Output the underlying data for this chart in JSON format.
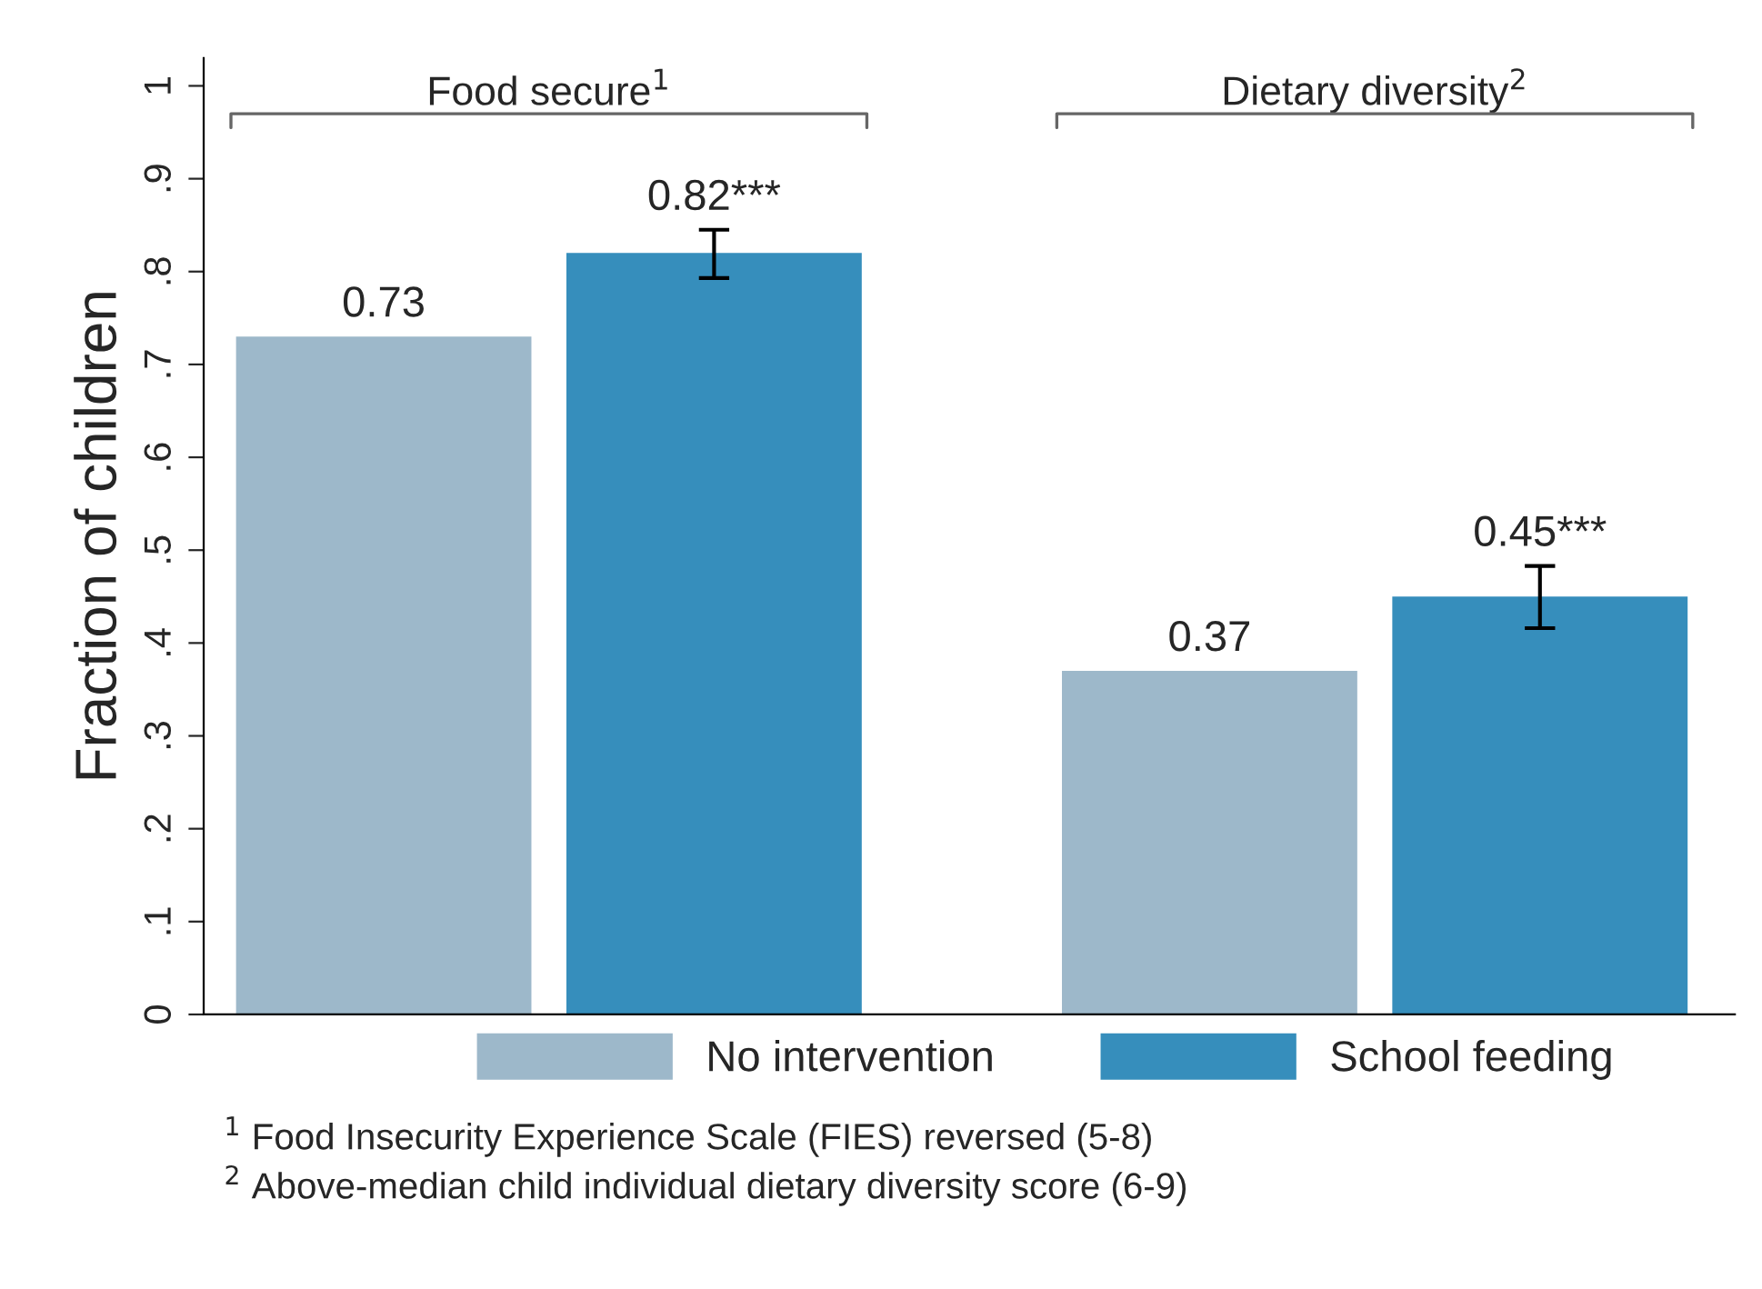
{
  "chart_data": {
    "type": "bar",
    "ylabel": "Fraction of children",
    "categories": [
      "Food secure$^{1}$",
      "Dietary diversity$^{2}$"
    ],
    "series": [
      {
        "name": "No intervention",
        "color": "#9db8ca",
        "values": [
          0.73,
          0.37
        ],
        "value_labels": [
          "0.73",
          "0.37"
        ]
      },
      {
        "name": "School feeding",
        "color": "#368ebc",
        "values": [
          0.82,
          0.45
        ],
        "value_labels": [
          "0.82***",
          "0.45***"
        ],
        "errors": [
          [
            0.793,
            0.845
          ],
          [
            0.416,
            0.483
          ]
        ]
      }
    ],
    "ylim": [
      0,
      1.03
    ],
    "yticks": [
      0,
      {
        "value": 0.1,
        "label": ".1"
      },
      {
        "value": 0.2,
        "label": ".2"
      },
      {
        "value": 0.3,
        "label": ".3"
      },
      {
        "value": 0.4,
        "label": ".4"
      },
      {
        "value": 0.5,
        "label": ".5"
      },
      {
        "value": 0.6,
        "label": ".6"
      },
      {
        "value": 0.7,
        "label": ".7"
      },
      {
        "value": 0.8,
        "label": ".8"
      },
      {
        "value": 0.9,
        "label": ".9"
      },
      1
    ],
    "grid": false,
    "legend": "bottom",
    "annotations": [
      "$^{1}$ Food Insecurity Experience Scale (FIES) reversed (5-8)",
      "$^{2}$ Above-median child individual dietary diversity score (6-9)"
    ]
  }
}
